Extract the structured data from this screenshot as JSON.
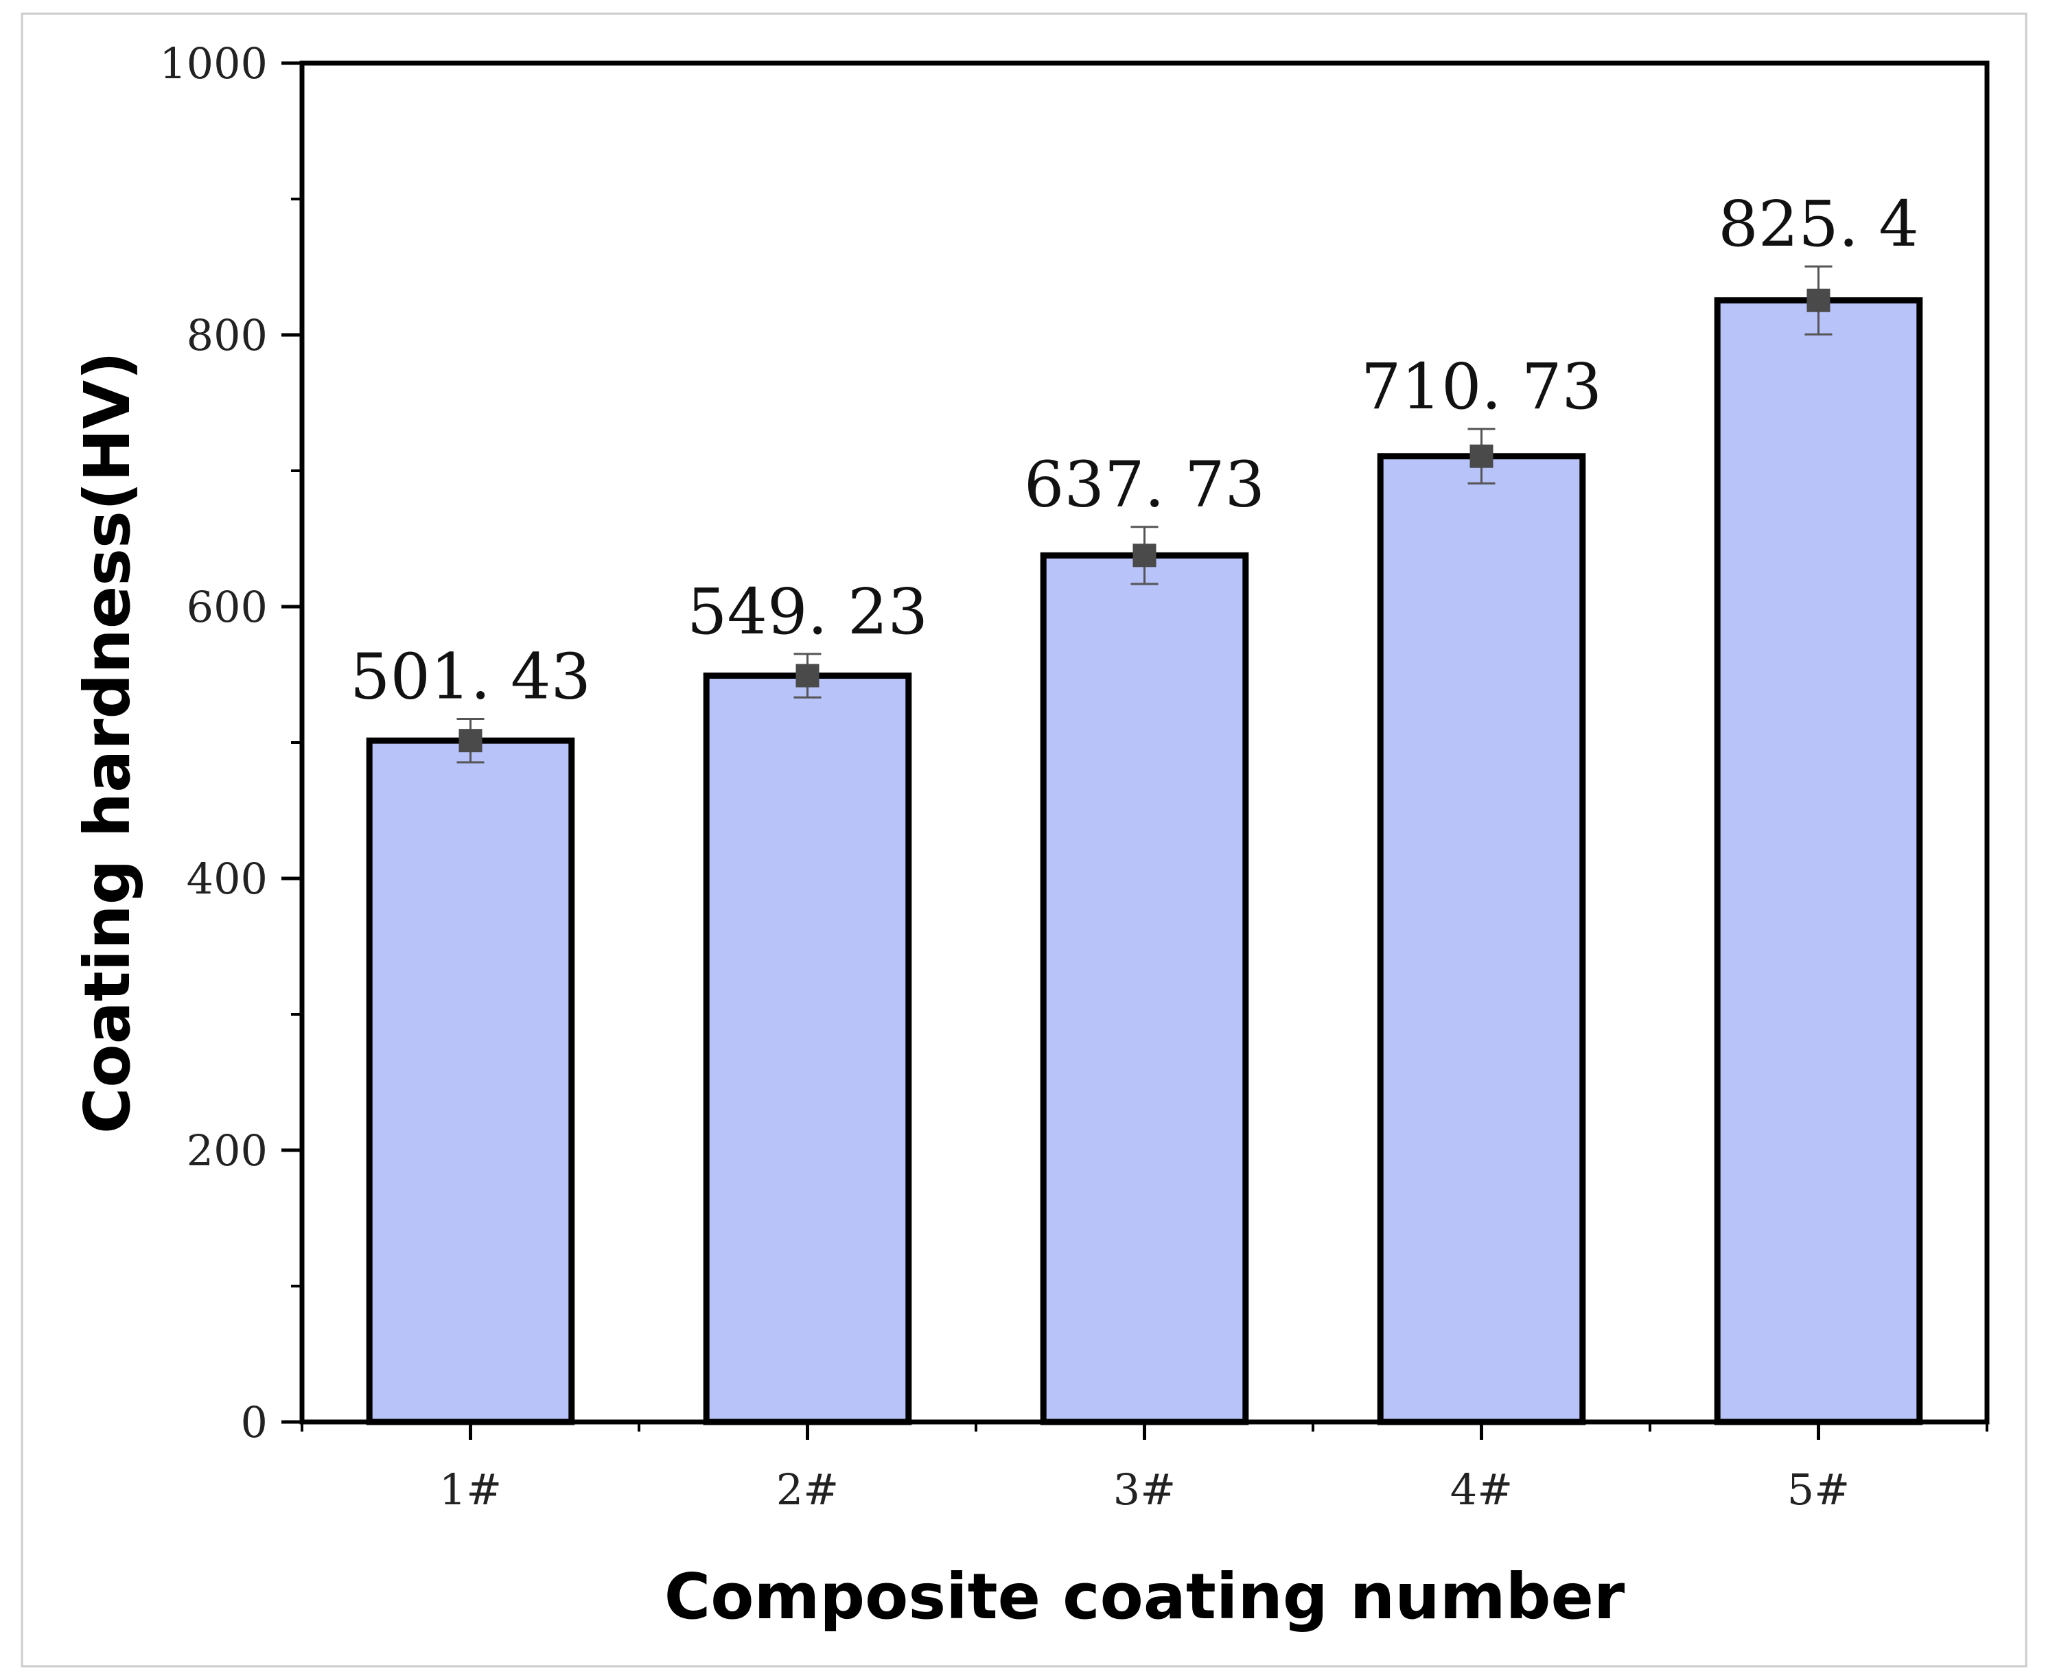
{
  "chart_data": {
    "type": "bar",
    "title": "",
    "xlabel": "Composite coating number",
    "ylabel": "Coating hardness(HV)",
    "categories": [
      "1#",
      "2#",
      "3#",
      "4#",
      "5#"
    ],
    "values": [
      501.43,
      549.23,
      637.73,
      710.73,
      825.4
    ],
    "data_labels": [
      "501. 43",
      "549. 23",
      "637. 73",
      "710. 73",
      "825. 4"
    ],
    "error": [
      16,
      16,
      21,
      20,
      25
    ],
    "ylim": [
      0,
      1000
    ],
    "yticks": [
      0,
      200,
      400,
      600,
      800,
      1000
    ],
    "ytick_labels": [
      "0",
      "200",
      "400",
      "600",
      "800",
      "1000"
    ],
    "grid": false,
    "legend": "none",
    "colors": {
      "bar_fill": "#b8c3fa",
      "bar_edge": "#000000",
      "marker": "#4a4a4a",
      "errorbar": "#555555",
      "frame": "#000000"
    }
  }
}
